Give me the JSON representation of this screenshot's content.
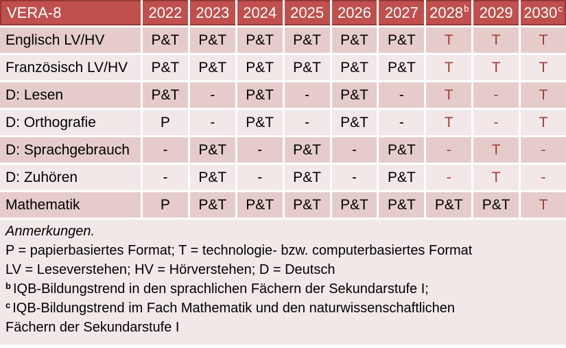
{
  "colors": {
    "header_bg": "#C0504D",
    "header_border": "#953735",
    "band_dark": "#E5CCCB",
    "band_light": "#F2E8E7",
    "accent_red": "#A13D38",
    "text": "#000000"
  },
  "table": {
    "title": "VERA-8",
    "columns": [
      {
        "label": "2022",
        "sup": ""
      },
      {
        "label": "2023",
        "sup": ""
      },
      {
        "label": "2024",
        "sup": ""
      },
      {
        "label": "2025",
        "sup": ""
      },
      {
        "label": "2026",
        "sup": ""
      },
      {
        "label": "2027",
        "sup": ""
      },
      {
        "label": "2028",
        "sup": "b"
      },
      {
        "label": "2029",
        "sup": ""
      },
      {
        "label": "2030",
        "sup": "c"
      }
    ],
    "rows": [
      {
        "label": "Englisch LV/HV",
        "cells": [
          {
            "t": "P&T",
            "red": false
          },
          {
            "t": "P&T",
            "red": false
          },
          {
            "t": "P&T",
            "red": false
          },
          {
            "t": "P&T",
            "red": false
          },
          {
            "t": "P&T",
            "red": false
          },
          {
            "t": "P&T",
            "red": false
          },
          {
            "t": "T",
            "red": true
          },
          {
            "t": "T",
            "red": true
          },
          {
            "t": "T",
            "red": true
          }
        ]
      },
      {
        "label": "Französisch LV/HV",
        "cells": [
          {
            "t": "P&T",
            "red": false
          },
          {
            "t": "P&T",
            "red": false
          },
          {
            "t": "P&T",
            "red": false
          },
          {
            "t": "P&T",
            "red": false
          },
          {
            "t": "P&T",
            "red": false
          },
          {
            "t": "P&T",
            "red": false
          },
          {
            "t": "T",
            "red": true
          },
          {
            "t": "T",
            "red": true
          },
          {
            "t": "T",
            "red": true
          }
        ]
      },
      {
        "label": "D: Lesen",
        "cells": [
          {
            "t": "P&T",
            "red": false
          },
          {
            "t": "-",
            "red": false
          },
          {
            "t": "P&T",
            "red": false
          },
          {
            "t": "-",
            "red": false
          },
          {
            "t": "P&T",
            "red": false
          },
          {
            "t": "-",
            "red": false
          },
          {
            "t": "T",
            "red": true
          },
          {
            "t": "-",
            "red": true
          },
          {
            "t": "T",
            "red": true
          }
        ]
      },
      {
        "label": "D: Orthografie",
        "cells": [
          {
            "t": "P",
            "red": false
          },
          {
            "t": "-",
            "red": false
          },
          {
            "t": "P&T",
            "red": false
          },
          {
            "t": "-",
            "red": false
          },
          {
            "t": "P&T",
            "red": false
          },
          {
            "t": "-",
            "red": false
          },
          {
            "t": "T",
            "red": true
          },
          {
            "t": "-",
            "red": true
          },
          {
            "t": "T",
            "red": true
          }
        ]
      },
      {
        "label": "D: Sprachgebrauch",
        "cells": [
          {
            "t": "-",
            "red": false
          },
          {
            "t": "P&T",
            "red": false
          },
          {
            "t": "-",
            "red": false
          },
          {
            "t": "P&T",
            "red": false
          },
          {
            "t": "-",
            "red": false
          },
          {
            "t": "P&T",
            "red": false
          },
          {
            "t": "-",
            "red": true
          },
          {
            "t": "T",
            "red": true
          },
          {
            "t": "-",
            "red": true
          }
        ]
      },
      {
        "label": "D: Zuhören",
        "cells": [
          {
            "t": "-",
            "red": false
          },
          {
            "t": "P&T",
            "red": false
          },
          {
            "t": "-",
            "red": false
          },
          {
            "t": "P&T",
            "red": false
          },
          {
            "t": "-",
            "red": false
          },
          {
            "t": "P&T",
            "red": false
          },
          {
            "t": "-",
            "red": true
          },
          {
            "t": "T",
            "red": true
          },
          {
            "t": "-",
            "red": true
          }
        ]
      },
      {
        "label": "Mathematik",
        "cells": [
          {
            "t": "P",
            "red": false
          },
          {
            "t": "P&T",
            "red": false
          },
          {
            "t": "P&T",
            "red": false
          },
          {
            "t": "P&T",
            "red": false
          },
          {
            "t": "P&T",
            "red": false
          },
          {
            "t": "P&T",
            "red": false
          },
          {
            "t": "P&T",
            "red": false
          },
          {
            "t": "P&T",
            "red": false
          },
          {
            "t": "T",
            "red": true
          }
        ]
      }
    ]
  },
  "notes": {
    "title": "Anmerkungen.",
    "lines": [
      {
        "sup": "",
        "text": "P = papierbasiertes Format; T = technologie- bzw. computerbasiertes Format"
      },
      {
        "sup": "",
        "text": "LV = Leseverstehen; HV = Hörverstehen; D = Deutsch"
      },
      {
        "sup": "b",
        "text": "IQB-Bildungstrend in den sprachlichen Fächern der Sekundarstufe I;"
      },
      {
        "sup": "c",
        "text": "IQB-Bildungstrend im Fach Mathematik und den naturwissenschaftlichen"
      },
      {
        "sup": "",
        "text": "Fächern der Sekundarstufe I"
      }
    ]
  }
}
